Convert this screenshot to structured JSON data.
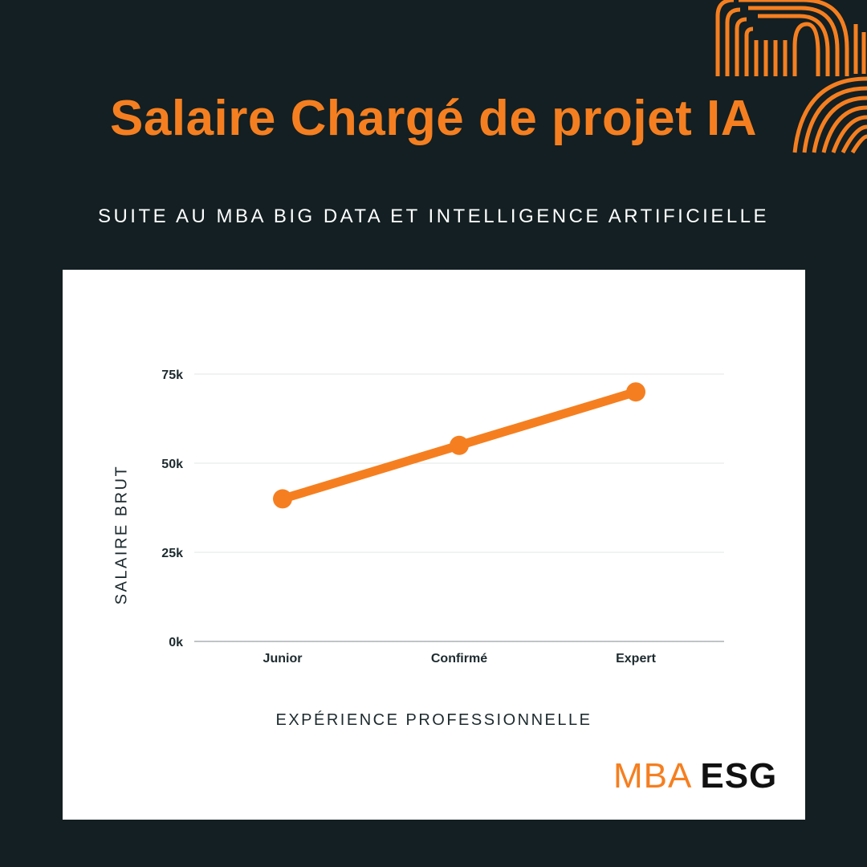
{
  "header": {
    "title": "Salaire Chargé de projet IA",
    "subtitle": "SUITE AU MBA BIG DATA ET INTELLIGENCE ARTIFICIELLE"
  },
  "chart_data": {
    "type": "line",
    "categories": [
      "Junior",
      "Confirmé",
      "Expert"
    ],
    "values": [
      40000,
      55000,
      70000
    ],
    "xlabel": "EXPÉRIENCE PROFESSIONNELLE",
    "ylabel": "SALAIRE BRUT",
    "yticks": [
      {
        "value": 0,
        "label": "0k"
      },
      {
        "value": 25000,
        "label": "25k"
      },
      {
        "value": 50000,
        "label": "50k"
      },
      {
        "value": 75000,
        "label": "75k"
      }
    ],
    "ylim": [
      0,
      75000
    ],
    "grid": true,
    "line_color": "#f57f20"
  },
  "logo": {
    "part1": "MBA",
    "part2": "ESG"
  },
  "colors": {
    "background": "#131f22",
    "accent": "#f57f20",
    "card": "#ffffff"
  }
}
